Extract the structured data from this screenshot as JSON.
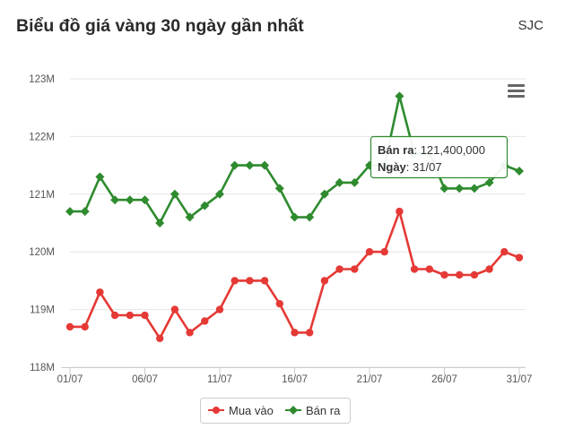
{
  "header": {
    "title": "Biểu đồ giá vàng 30 ngày gần nhất",
    "source": "SJC"
  },
  "colors": {
    "buy": "#e53935",
    "sell": "#2e8b2e",
    "grid": "#e6e6e6",
    "axis": "#cccccc"
  },
  "menu_icon": "hamburger-menu-icon",
  "tooltip": {
    "series_label": "Bán ra",
    "value": "121,400,000",
    "date_label": "Ngày",
    "date": "31/07"
  },
  "chart_data": {
    "type": "line",
    "title": "Biểu đồ giá vàng 30 ngày gần nhất",
    "x": [
      "01/07",
      "02/07",
      "03/07",
      "04/07",
      "05/07",
      "06/07",
      "07/07",
      "08/07",
      "09/07",
      "10/07",
      "11/07",
      "12/07",
      "13/07",
      "14/07",
      "15/07",
      "16/07",
      "17/07",
      "18/07",
      "19/07",
      "20/07",
      "21/07",
      "22/07",
      "23/07",
      "24/07",
      "25/07",
      "26/07",
      "27/07",
      "28/07",
      "29/07",
      "30/07",
      "31/07"
    ],
    "x_tick_labels": [
      "01/07",
      "06/07",
      "11/07",
      "16/07",
      "21/07",
      "26/07",
      "31/07"
    ],
    "y_tick_labels": [
      "118M",
      "119M",
      "120M",
      "121M",
      "122M",
      "123M"
    ],
    "ylim": [
      118,
      123
    ],
    "y_unit": "M",
    "grid": true,
    "legend_position": "bottom",
    "series": [
      {
        "name": "Mua vào",
        "color": "#e53935",
        "values": [
          118.7,
          118.7,
          119.3,
          118.9,
          118.9,
          118.9,
          118.5,
          119.0,
          118.6,
          118.8,
          119.0,
          119.5,
          119.5,
          119.5,
          119.1,
          118.6,
          118.6,
          119.5,
          119.7,
          119.7,
          120.0,
          120.0,
          120.7,
          119.7,
          119.7,
          119.6,
          119.6,
          119.6,
          119.7,
          120.0,
          119.9
        ]
      },
      {
        "name": "Bán ra",
        "color": "#2e8b2e",
        "values": [
          120.7,
          120.7,
          121.3,
          120.9,
          120.9,
          120.9,
          120.5,
          121.0,
          120.6,
          120.8,
          121.0,
          121.5,
          121.5,
          121.5,
          121.1,
          120.6,
          120.6,
          121.0,
          121.2,
          121.2,
          121.5,
          121.5,
          122.7,
          121.7,
          121.7,
          121.1,
          121.1,
          121.1,
          121.2,
          121.5,
          121.4
        ]
      }
    ]
  }
}
